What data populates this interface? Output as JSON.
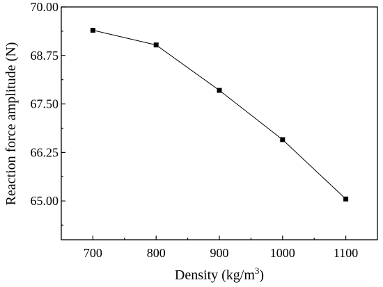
{
  "chart_data": {
    "type": "line",
    "title": "",
    "xlabel": "Density (kg/m",
    "xlabel_sup": "3",
    "xlabel_end": ")",
    "ylabel": "Reaction force amplitude (N)",
    "x": [
      700,
      800,
      900,
      1000,
      1100
    ],
    "series": [
      {
        "values": [
          69.4,
          69.02,
          67.85,
          66.58,
          65.05
        ]
      }
    ],
    "xlim": [
      650,
      1150
    ],
    "ylim": [
      64.0,
      70.0
    ],
    "xticks": [
      700,
      800,
      900,
      1000,
      1100
    ],
    "xtick_labels": [
      "700",
      "800",
      "900",
      "1000",
      "1100"
    ],
    "yticks": [
      65.0,
      66.25,
      67.5,
      68.75,
      70.0
    ],
    "ytick_labels": [
      "65.00",
      "66.25",
      "67.50",
      "68.75",
      "70.00"
    ],
    "grid": false,
    "marker": "square",
    "line_color": "#000000",
    "marker_color": "#000000"
  }
}
